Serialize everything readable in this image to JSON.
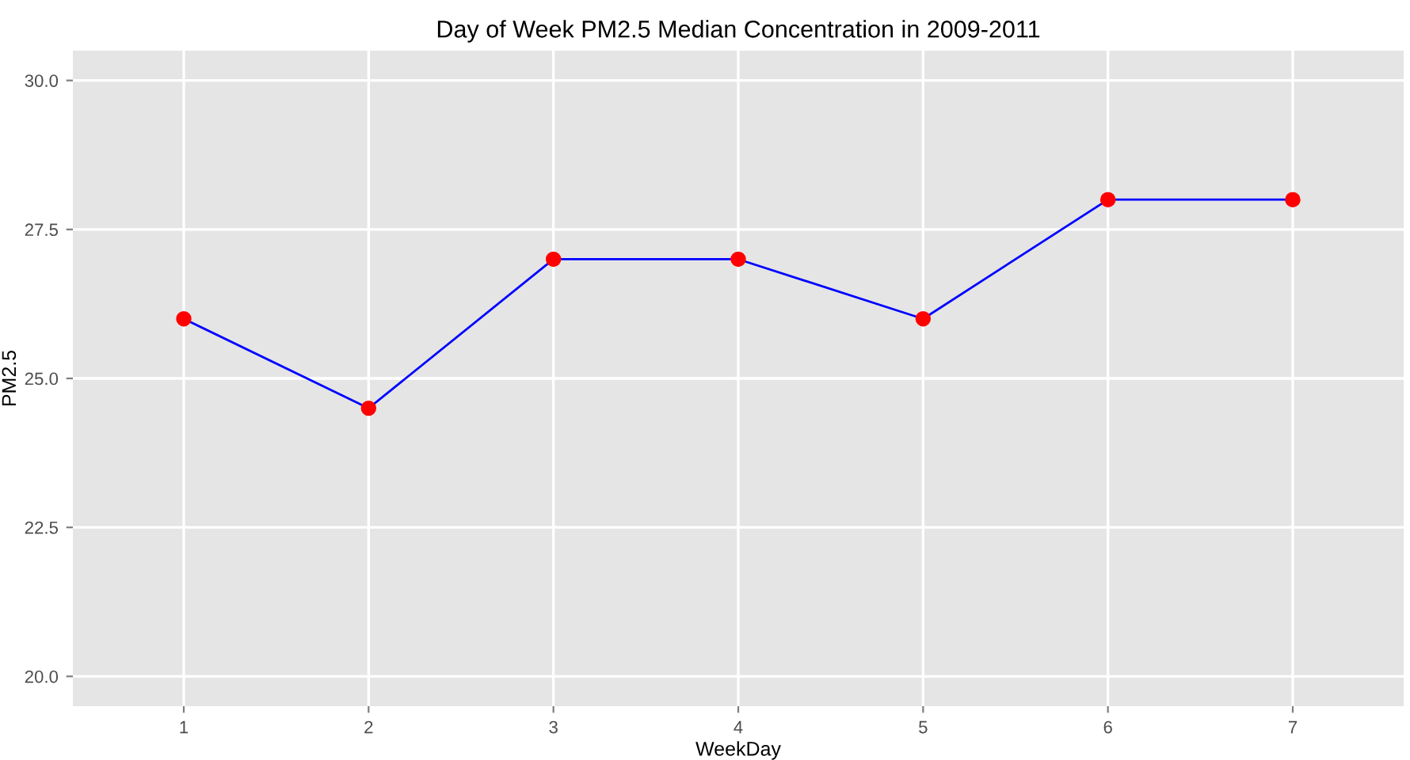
{
  "chart_data": {
    "type": "line",
    "title": "Day of Week PM2.5 Median Concentration in 2009-2011",
    "xlabel": "WeekDay",
    "ylabel": "PM2.5",
    "x": [
      1,
      2,
      3,
      4,
      5,
      6,
      7
    ],
    "series": [
      {
        "color": "#0000ff",
        "colors": [
          "#ff0000",
          "#ff0000",
          "#ff0000",
          "#ff0000",
          "#ff0000",
          "#ff0000",
          "#ff0000"
        ],
        "values": [
          26,
          24.5,
          27,
          27,
          26,
          28,
          28
        ]
      }
    ],
    "xlim": [
      0.4,
      7.6
    ],
    "xticks": [
      1,
      2,
      3,
      4,
      5,
      6,
      7
    ],
    "ylim": [
      19.5,
      30.5
    ],
    "yticks": [
      {
        "value": 20,
        "label": "20.0"
      },
      {
        "value": 22.5,
        "label": "22.5"
      },
      {
        "value": 25,
        "label": "25.0"
      },
      {
        "value": 27.5,
        "label": "27.5"
      },
      {
        "value": 30,
        "label": "30.0"
      }
    ],
    "grid": true,
    "marker": "circle",
    "line_style": "solid"
  }
}
